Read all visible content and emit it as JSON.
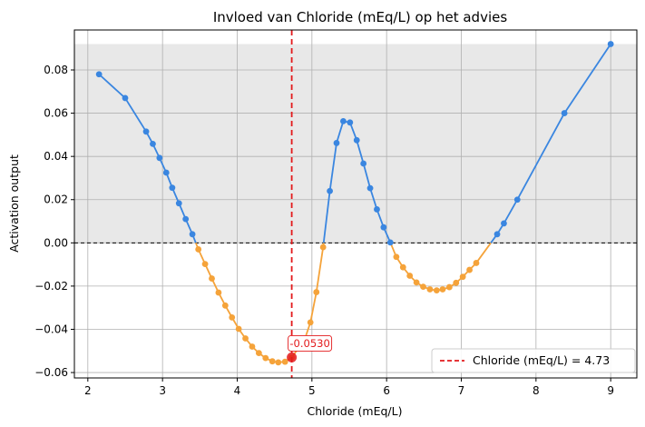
{
  "chart_data": {
    "type": "line",
    "title": "Invloed van Chloride (mEq/L) op het advies",
    "xlabel": "Chloride (mEq/L)",
    "ylabel": "Activation output",
    "xlim": [
      1.82,
      9.35
    ],
    "ylim": [
      -0.0625,
      0.0985
    ],
    "xticks": [
      2,
      3,
      4,
      5,
      6,
      7,
      8,
      9
    ],
    "yticks": [
      -0.06,
      -0.04,
      -0.02,
      0.0,
      0.02,
      0.04,
      0.06,
      0.08
    ],
    "xtick_labels": [
      "2",
      "3",
      "4",
      "5",
      "6",
      "7",
      "8",
      "9"
    ],
    "ytick_labels": [
      "−0.06",
      "−0.04",
      "−0.02",
      "0.00",
      "0.02",
      "0.04",
      "0.06",
      "0.08"
    ],
    "grid": true,
    "shaded_region": {
      "y_from": 0.0,
      "y_to": 0.092,
      "color": "#e8e8e8"
    },
    "zero_line": {
      "y": 0.0,
      "style": "dashed",
      "color": "#000000"
    },
    "vline": {
      "x": 4.73,
      "color": "#e31a1c",
      "style": "dashed",
      "label": "Chloride (mEq/L) = 4.73"
    },
    "annotation": {
      "x": 4.73,
      "y": -0.053,
      "text": "-0.0530",
      "color": "#e31a1c"
    },
    "legend": {
      "placement": "lower-right"
    },
    "colors": {
      "positive": "#3a86e0",
      "negative": "#f5a33a"
    },
    "points": [
      [
        2.15,
        0.078
      ],
      [
        2.5,
        0.067
      ],
      [
        2.78,
        0.0515
      ],
      [
        2.87,
        0.0458
      ],
      [
        2.96,
        0.0393
      ],
      [
        3.05,
        0.0325
      ],
      [
        3.13,
        0.0255
      ],
      [
        3.22,
        0.0183
      ],
      [
        3.31,
        0.011
      ],
      [
        3.4,
        0.004
      ],
      [
        3.48,
        -0.003
      ],
      [
        3.57,
        -0.0098
      ],
      [
        3.66,
        -0.0165
      ],
      [
        3.75,
        -0.023
      ],
      [
        3.84,
        -0.029
      ],
      [
        3.93,
        -0.0345
      ],
      [
        4.02,
        -0.0398
      ],
      [
        4.11,
        -0.0442
      ],
      [
        4.2,
        -0.048
      ],
      [
        4.29,
        -0.051
      ],
      [
        4.38,
        -0.0533
      ],
      [
        4.47,
        -0.0548
      ],
      [
        4.55,
        -0.0553
      ],
      [
        4.64,
        -0.055
      ],
      [
        4.73,
        -0.053
      ],
      [
        4.9,
        -0.045
      ],
      [
        4.98,
        -0.0368
      ],
      [
        5.06,
        -0.0228
      ],
      [
        5.15,
        -0.002
      ],
      [
        5.24,
        0.024
      ],
      [
        5.33,
        0.0462
      ],
      [
        5.42,
        0.0563
      ],
      [
        5.51,
        0.0557
      ],
      [
        5.6,
        0.0475
      ],
      [
        5.69,
        0.0367
      ],
      [
        5.78,
        0.0253
      ],
      [
        5.87,
        0.0155
      ],
      [
        5.96,
        0.0072
      ],
      [
        6.05,
        0.0002
      ],
      [
        6.13,
        -0.0065
      ],
      [
        6.22,
        -0.0113
      ],
      [
        6.31,
        -0.0152
      ],
      [
        6.4,
        -0.0183
      ],
      [
        6.49,
        -0.0203
      ],
      [
        6.58,
        -0.0215
      ],
      [
        6.67,
        -0.022
      ],
      [
        6.75,
        -0.0215
      ],
      [
        6.84,
        -0.0205
      ],
      [
        6.93,
        -0.0185
      ],
      [
        7.02,
        -0.0157
      ],
      [
        7.11,
        -0.0125
      ],
      [
        7.2,
        -0.0093
      ],
      [
        7.48,
        0.004
      ],
      [
        7.57,
        0.009
      ],
      [
        7.75,
        0.02
      ],
      [
        8.38,
        0.06
      ],
      [
        9.0,
        0.092
      ]
    ]
  }
}
